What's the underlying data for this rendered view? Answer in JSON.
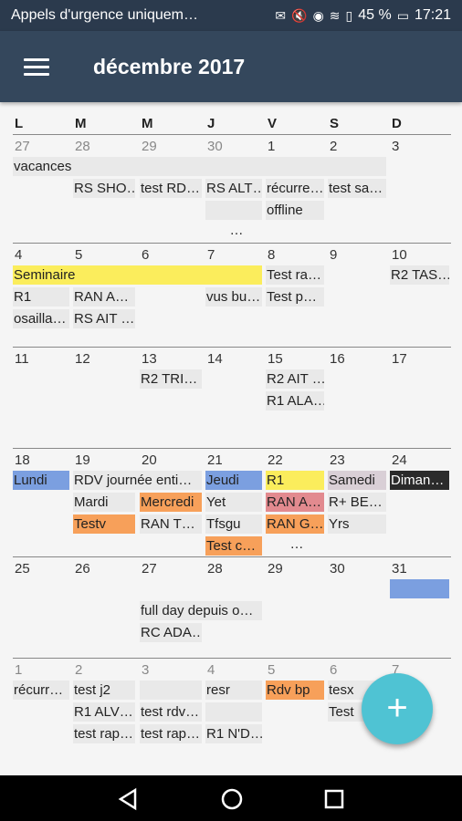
{
  "status": {
    "carrier": "Appels d'urgence uniquem…",
    "battery": "45 %",
    "time": "17:21"
  },
  "header": {
    "title": "décembre 2017",
    "menu_icon": "hamburger-menu-icon"
  },
  "weekdays": [
    "L",
    "M",
    "M",
    "J",
    "V",
    "S",
    "D"
  ],
  "weeks": [
    {
      "days": [
        "27",
        "28",
        "29",
        "30",
        "1",
        "2",
        "3"
      ],
      "other": [
        true,
        true,
        true,
        true,
        false,
        false,
        false
      ],
      "events": [
        {
          "col": 0,
          "span": 6,
          "row": 0,
          "text": "vacances",
          "color": "#e9e9e9"
        },
        {
          "col": 1,
          "span": 1,
          "row": 1,
          "text": "RS SHO…",
          "color": "#e9e9e9"
        },
        {
          "col": 2,
          "span": 1,
          "row": 1,
          "text": "test RD…",
          "color": "#e9e9e9"
        },
        {
          "col": 3,
          "span": 1,
          "row": 1,
          "text": "RS ALT…",
          "color": "#e9e9e9"
        },
        {
          "col": 4,
          "span": 1,
          "row": 1,
          "text": "récurre…",
          "color": "#e9e9e9"
        },
        {
          "col": 5,
          "span": 1,
          "row": 1,
          "text": "test sa…",
          "color": "#e9e9e9"
        },
        {
          "col": 3,
          "span": 1,
          "row": 2,
          "text": "",
          "color": "#e9e9e9"
        },
        {
          "col": 4,
          "span": 1,
          "row": 2,
          "text": "offline",
          "color": "#e9e9e9"
        }
      ],
      "more": [
        {
          "col": 3,
          "row": 3,
          "text": "…"
        }
      ]
    },
    {
      "days": [
        "4",
        "5",
        "6",
        "7",
        "8",
        "9",
        "10"
      ],
      "other": [
        false,
        false,
        false,
        false,
        false,
        false,
        false
      ],
      "events": [
        {
          "col": 0,
          "span": 4,
          "row": 0,
          "text": "Seminaire",
          "color": "#fbed5c"
        },
        {
          "col": 4,
          "span": 1,
          "row": 0,
          "text": "Test ra…",
          "color": "#e9e9e9"
        },
        {
          "col": 6,
          "span": 1,
          "row": 0,
          "text": "R2 TAS…",
          "color": "#e9e9e9"
        },
        {
          "col": 0,
          "span": 1,
          "row": 1,
          "text": "R1",
          "color": "#e9e9e9"
        },
        {
          "col": 1,
          "span": 1,
          "row": 1,
          "text": "RAN A…",
          "color": "#e9e9e9"
        },
        {
          "col": 3,
          "span": 1,
          "row": 1,
          "text": "vus bu…",
          "color": "#e9e9e9"
        },
        {
          "col": 4,
          "span": 1,
          "row": 1,
          "text": "Test p…",
          "color": "#e9e9e9"
        },
        {
          "col": 0,
          "span": 1,
          "row": 2,
          "text": "osailla…",
          "color": "#e9e9e9"
        },
        {
          "col": 1,
          "span": 1,
          "row": 2,
          "text": "RS AIT …",
          "color": "#e9e9e9"
        }
      ],
      "more": []
    },
    {
      "days": [
        "11",
        "12",
        "13",
        "14",
        "15",
        "16",
        "17"
      ],
      "other": [
        false,
        false,
        false,
        false,
        false,
        false,
        false
      ],
      "events": [
        {
          "col": 2,
          "span": 1,
          "row": 0,
          "text": "R2 TRI…",
          "color": "#e9e9e9"
        },
        {
          "col": 4,
          "span": 1,
          "row": 0,
          "text": "R2 AIT …",
          "color": "#e9e9e9"
        },
        {
          "col": 4,
          "span": 1,
          "row": 1,
          "text": "R1 ALA…",
          "color": "#e9e9e9"
        }
      ],
      "more": []
    },
    {
      "days": [
        "18",
        "19",
        "20",
        "21",
        "22",
        "23",
        "24"
      ],
      "other": [
        false,
        false,
        false,
        false,
        false,
        false,
        false
      ],
      "events": [
        {
          "col": 0,
          "span": 1,
          "row": 0,
          "text": "Lundi",
          "color": "#7b9fe0"
        },
        {
          "col": 1,
          "span": 2,
          "row": 0,
          "text": "RDV journée enti…",
          "color": "#e9e9e9"
        },
        {
          "col": 3,
          "span": 1,
          "row": 0,
          "text": "Jeudi",
          "color": "#7b9fe0"
        },
        {
          "col": 4,
          "span": 1,
          "row": 0,
          "text": "R1",
          "color": "#fbed5c"
        },
        {
          "col": 5,
          "span": 1,
          "row": 0,
          "text": "Samedi",
          "color": "#d9cfd6"
        },
        {
          "col": 6,
          "span": 1,
          "row": 0,
          "text": "Diman…",
          "color": "#2b2b2b",
          "fg": "#ffffff"
        },
        {
          "col": 1,
          "span": 1,
          "row": 1,
          "text": "Mardi",
          "color": "#e9e9e9"
        },
        {
          "col": 2,
          "span": 1,
          "row": 1,
          "text": "Mercredi",
          "color": "#f7a05a"
        },
        {
          "col": 3,
          "span": 1,
          "row": 1,
          "text": "Yet",
          "color": "#e9e9e9"
        },
        {
          "col": 4,
          "span": 1,
          "row": 1,
          "text": "RAN A…",
          "color": "#e28a8f"
        },
        {
          "col": 5,
          "span": 1,
          "row": 1,
          "text": "R+ BE…",
          "color": "#e9e9e9"
        },
        {
          "col": 1,
          "span": 1,
          "row": 2,
          "text": "Testv",
          "color": "#f7a05a"
        },
        {
          "col": 2,
          "span": 1,
          "row": 2,
          "text": "RAN T…",
          "color": "#e9e9e9"
        },
        {
          "col": 3,
          "span": 1,
          "row": 2,
          "text": "Tfsgu",
          "color": "#e9e9e9"
        },
        {
          "col": 4,
          "span": 1,
          "row": 2,
          "text": "RAN G…",
          "color": "#f7a05a"
        },
        {
          "col": 5,
          "span": 1,
          "row": 2,
          "text": "Yrs",
          "color": "#e9e9e9"
        },
        {
          "col": 3,
          "span": 1,
          "row": 3,
          "text": "Test c…",
          "color": "#f7a05a"
        }
      ],
      "more": [
        {
          "col": 4,
          "row": 3,
          "text": "…"
        }
      ]
    },
    {
      "days": [
        "25",
        "26",
        "27",
        "28",
        "29",
        "30",
        "31"
      ],
      "other": [
        false,
        false,
        false,
        false,
        false,
        false,
        false
      ],
      "events": [
        {
          "col": 6,
          "span": 1,
          "row": 0,
          "text": "",
          "color": "#7b9fe0"
        },
        {
          "col": 2,
          "span": 2,
          "row": 1,
          "text": "full day depuis o…",
          "color": "#e9e9e9"
        },
        {
          "col": 2,
          "span": 1,
          "row": 2,
          "text": "RC ADA…",
          "color": "#e9e9e9"
        }
      ],
      "more": []
    },
    {
      "days": [
        "1",
        "2",
        "3",
        "4",
        "5",
        "6",
        "7"
      ],
      "other": [
        true,
        true,
        true,
        true,
        true,
        true,
        true
      ],
      "events": [
        {
          "col": 0,
          "span": 1,
          "row": 0,
          "text": "récurr…",
          "color": "#e9e9e9"
        },
        {
          "col": 1,
          "span": 1,
          "row": 0,
          "text": "test j2",
          "color": "#e9e9e9"
        },
        {
          "col": 2,
          "span": 1,
          "row": 0,
          "text": "",
          "color": "#e9e9e9"
        },
        {
          "col": 3,
          "span": 1,
          "row": 0,
          "text": "resr",
          "color": "#e9e9e9"
        },
        {
          "col": 4,
          "span": 1,
          "row": 0,
          "text": "Rdv bp",
          "color": "#f7a05a"
        },
        {
          "col": 5,
          "span": 1,
          "row": 0,
          "text": "tesx",
          "color": "#e9e9e9"
        },
        {
          "col": 1,
          "span": 1,
          "row": 1,
          "text": "R1 ALV…",
          "color": "#e9e9e9"
        },
        {
          "col": 2,
          "span": 1,
          "row": 1,
          "text": "test rdv…",
          "color": "#e9e9e9"
        },
        {
          "col": 3,
          "span": 1,
          "row": 1,
          "text": "",
          "color": "#e9e9e9"
        },
        {
          "col": 5,
          "span": 1,
          "row": 1,
          "text": "Test",
          "color": "#e9e9e9"
        },
        {
          "col": 1,
          "span": 1,
          "row": 2,
          "text": "test rap…",
          "color": "#e9e9e9"
        },
        {
          "col": 2,
          "span": 1,
          "row": 2,
          "text": "test rap…",
          "color": "#e9e9e9"
        },
        {
          "col": 3,
          "span": 1,
          "row": 2,
          "text": "R1 N'D…",
          "color": "#e9e9e9"
        }
      ],
      "more": []
    }
  ],
  "fab": {
    "label": "+",
    "icon": "add-icon"
  },
  "nav": {
    "back": "back-icon",
    "home": "home-icon",
    "recents": "recents-icon"
  }
}
